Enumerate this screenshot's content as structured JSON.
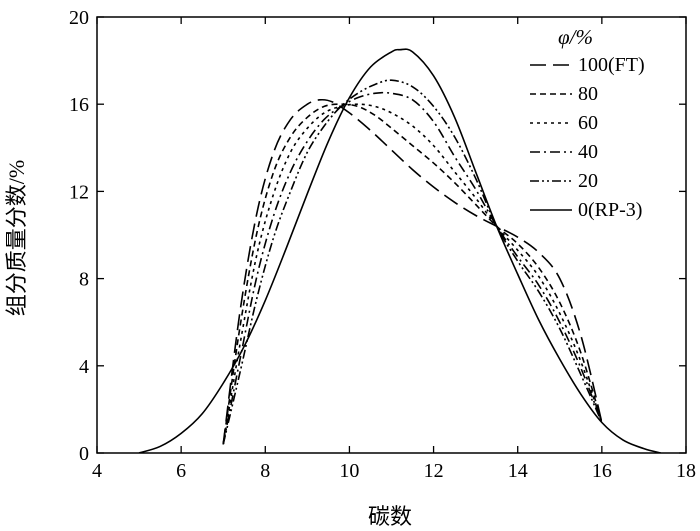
{
  "chart_data": {
    "type": "line",
    "xlabel": "碳数",
    "ylabel": "组分质量分数/%",
    "xlim": [
      4,
      18
    ],
    "ylim": [
      0,
      20
    ],
    "xticks": [
      4,
      6,
      8,
      10,
      12,
      14,
      16,
      18
    ],
    "yticks": [
      0,
      4,
      8,
      12,
      16,
      20
    ],
    "grid": false,
    "legend": {
      "title": "φ/%",
      "position": "top-right"
    },
    "series": [
      {
        "name": "100(FT)",
        "dash": "16 7",
        "x": [
          7.0,
          7.4,
          7.8,
          8.2,
          8.6,
          9.0,
          9.3,
          9.6,
          10.0,
          10.5,
          11.0,
          11.5,
          12.0,
          12.5,
          13.0,
          13.5,
          14.0,
          14.5,
          15.0,
          15.5,
          16.0
        ],
        "y": [
          0.4,
          6.5,
          11.0,
          13.8,
          15.3,
          16.0,
          16.2,
          16.1,
          15.6,
          14.8,
          13.9,
          13.0,
          12.2,
          11.5,
          10.9,
          10.4,
          9.9,
          9.2,
          8.0,
          5.4,
          1.4
        ]
      },
      {
        "name": "80",
        "dash": "6 4",
        "x": [
          7.0,
          7.4,
          7.8,
          8.2,
          8.6,
          9.0,
          9.4,
          9.8,
          10.2,
          10.6,
          11.0,
          11.5,
          12.0,
          12.5,
          13.0,
          13.5,
          14.0,
          14.5,
          15.0,
          15.5,
          16.0
        ],
        "y": [
          0.4,
          5.8,
          10.1,
          12.9,
          14.5,
          15.4,
          15.9,
          16.0,
          15.9,
          15.5,
          14.9,
          14.1,
          13.3,
          12.4,
          11.4,
          10.4,
          9.6,
          8.5,
          6.9,
          4.6,
          1.4
        ]
      },
      {
        "name": "60",
        "dash": "3 4",
        "x": [
          7.0,
          7.4,
          7.8,
          8.2,
          8.6,
          9.0,
          9.4,
          9.8,
          10.2,
          10.6,
          11.0,
          11.5,
          12.0,
          12.5,
          13.0,
          13.5,
          14.0,
          14.5,
          15.0,
          15.5,
          16.0
        ],
        "y": [
          0.4,
          5.0,
          9.1,
          11.9,
          13.8,
          14.9,
          15.6,
          15.9,
          16.0,
          15.9,
          15.6,
          15.0,
          14.1,
          12.9,
          11.7,
          10.4,
          9.3,
          8.1,
          6.4,
          4.2,
          1.4
        ]
      },
      {
        "name": "40",
        "dash": "10 4 2 4",
        "x": [
          7.0,
          7.4,
          7.8,
          8.2,
          8.6,
          9.0,
          9.4,
          9.8,
          10.2,
          10.6,
          11.0,
          11.5,
          12.0,
          12.5,
          13.0,
          13.5,
          14.0,
          14.5,
          15.0,
          15.5,
          16.0
        ],
        "y": [
          0.4,
          4.3,
          8.1,
          10.9,
          12.9,
          14.3,
          15.3,
          15.9,
          16.3,
          16.5,
          16.5,
          16.2,
          15.2,
          13.6,
          12.1,
          10.4,
          9.0,
          7.7,
          6.0,
          3.9,
          1.4
        ]
      },
      {
        "name": "20",
        "dash": "9 3 2 3 2 3",
        "x": [
          7.0,
          7.4,
          7.8,
          8.2,
          8.6,
          9.0,
          9.4,
          9.8,
          10.2,
          10.6,
          11.0,
          11.5,
          12.0,
          12.5,
          13.0,
          13.5,
          14.0,
          14.5,
          15.0,
          15.5,
          16.0
        ],
        "y": [
          0.4,
          3.7,
          7.1,
          9.9,
          12.0,
          13.8,
          15.0,
          15.9,
          16.5,
          16.9,
          17.1,
          16.8,
          15.9,
          14.5,
          12.6,
          10.4,
          8.8,
          7.4,
          5.7,
          3.6,
          1.4
        ]
      },
      {
        "name": "0(RP-3)",
        "dash": "",
        "x": [
          5.0,
          5.5,
          6.0,
          6.5,
          7.0,
          7.5,
          8.0,
          8.5,
          9.0,
          9.5,
          10.0,
          10.5,
          11.0,
          11.2,
          11.5,
          12.0,
          12.5,
          13.0,
          13.5,
          14.0,
          14.5,
          15.0,
          15.5,
          16.0,
          16.5,
          17.0,
          17.4
        ],
        "y": [
          0.0,
          0.3,
          0.9,
          1.8,
          3.2,
          4.9,
          7.0,
          9.4,
          11.9,
          14.3,
          16.3,
          17.7,
          18.4,
          18.5,
          18.4,
          17.3,
          15.4,
          12.9,
          10.4,
          8.2,
          6.1,
          4.3,
          2.7,
          1.4,
          0.6,
          0.2,
          0.0
        ]
      }
    ]
  }
}
